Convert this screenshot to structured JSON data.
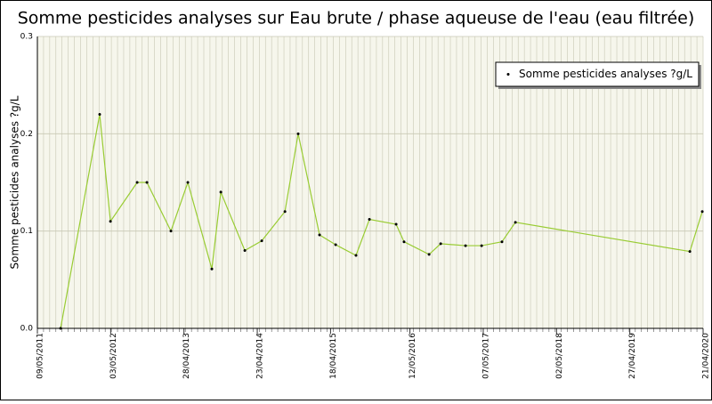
{
  "chart_data": {
    "type": "line",
    "title": "Somme pesticides analyses sur Eau brute / phase aqueuse de l'eau (eau filtrée)",
    "y_label": "Somme pesticides analyses ?g/L",
    "x": [
      "2011-08-31",
      "2012-03-10",
      "2012-05-02",
      "2012-09-10",
      "2012-10-28",
      "2013-02-23",
      "2013-05-17",
      "2013-09-12",
      "2013-10-26",
      "2014-02-21",
      "2014-05-15",
      "2014-09-06",
      "2014-11-10",
      "2015-02-23",
      "2015-05-13",
      "2015-08-21",
      "2015-10-26",
      "2016-03-05",
      "2016-04-13",
      "2016-08-14",
      "2016-10-10",
      "2017-02-09",
      "2017-04-29",
      "2017-08-07",
      "2017-10-12",
      "2020-02-16",
      "2020-04-17"
    ],
    "series": [
      {
        "name": "Somme pesticides analyses ?g/L",
        "color": "#99cc33",
        "values": [
          0,
          0.22,
          0.11,
          0.15,
          0.15,
          0.1,
          0.15,
          0.061,
          0.14,
          0.08,
          0.09,
          0.12,
          0.2,
          0.096,
          0.086,
          0.075,
          0.112,
          0.107,
          0.089,
          0.076,
          0.087,
          0.085,
          0.085,
          0.089,
          0.109,
          0.079,
          0.12
        ]
      }
    ],
    "xlim": [
      "2011-05-09",
      "2020-04-21"
    ],
    "xticks": [
      {
        "value": "2011-05-09",
        "label": "09/05/2011"
      },
      {
        "value": "2012-05-03",
        "label": "03/05/2012"
      },
      {
        "value": "2013-04-28",
        "label": "28/04/2013"
      },
      {
        "value": "2014-04-23",
        "label": "23/04/2014"
      },
      {
        "value": "2015-04-18",
        "label": "18/04/2015"
      },
      {
        "value": "2016-05-12",
        "label": "12/05/2016"
      },
      {
        "value": "2017-05-07",
        "label": "07/05/2017"
      },
      {
        "value": "2018-05-02",
        "label": "02/05/2018"
      },
      {
        "value": "2019-04-27",
        "label": "27/04/2019"
      },
      {
        "value": "2020-04-21",
        "label": "21/04/2020"
      }
    ],
    "ylim": [
      0,
      0.3
    ],
    "yticks": [
      {
        "value": 0,
        "label": "0.0"
      },
      0.1,
      0.2,
      0.3
    ],
    "grid": true,
    "legend": "top-right"
  }
}
